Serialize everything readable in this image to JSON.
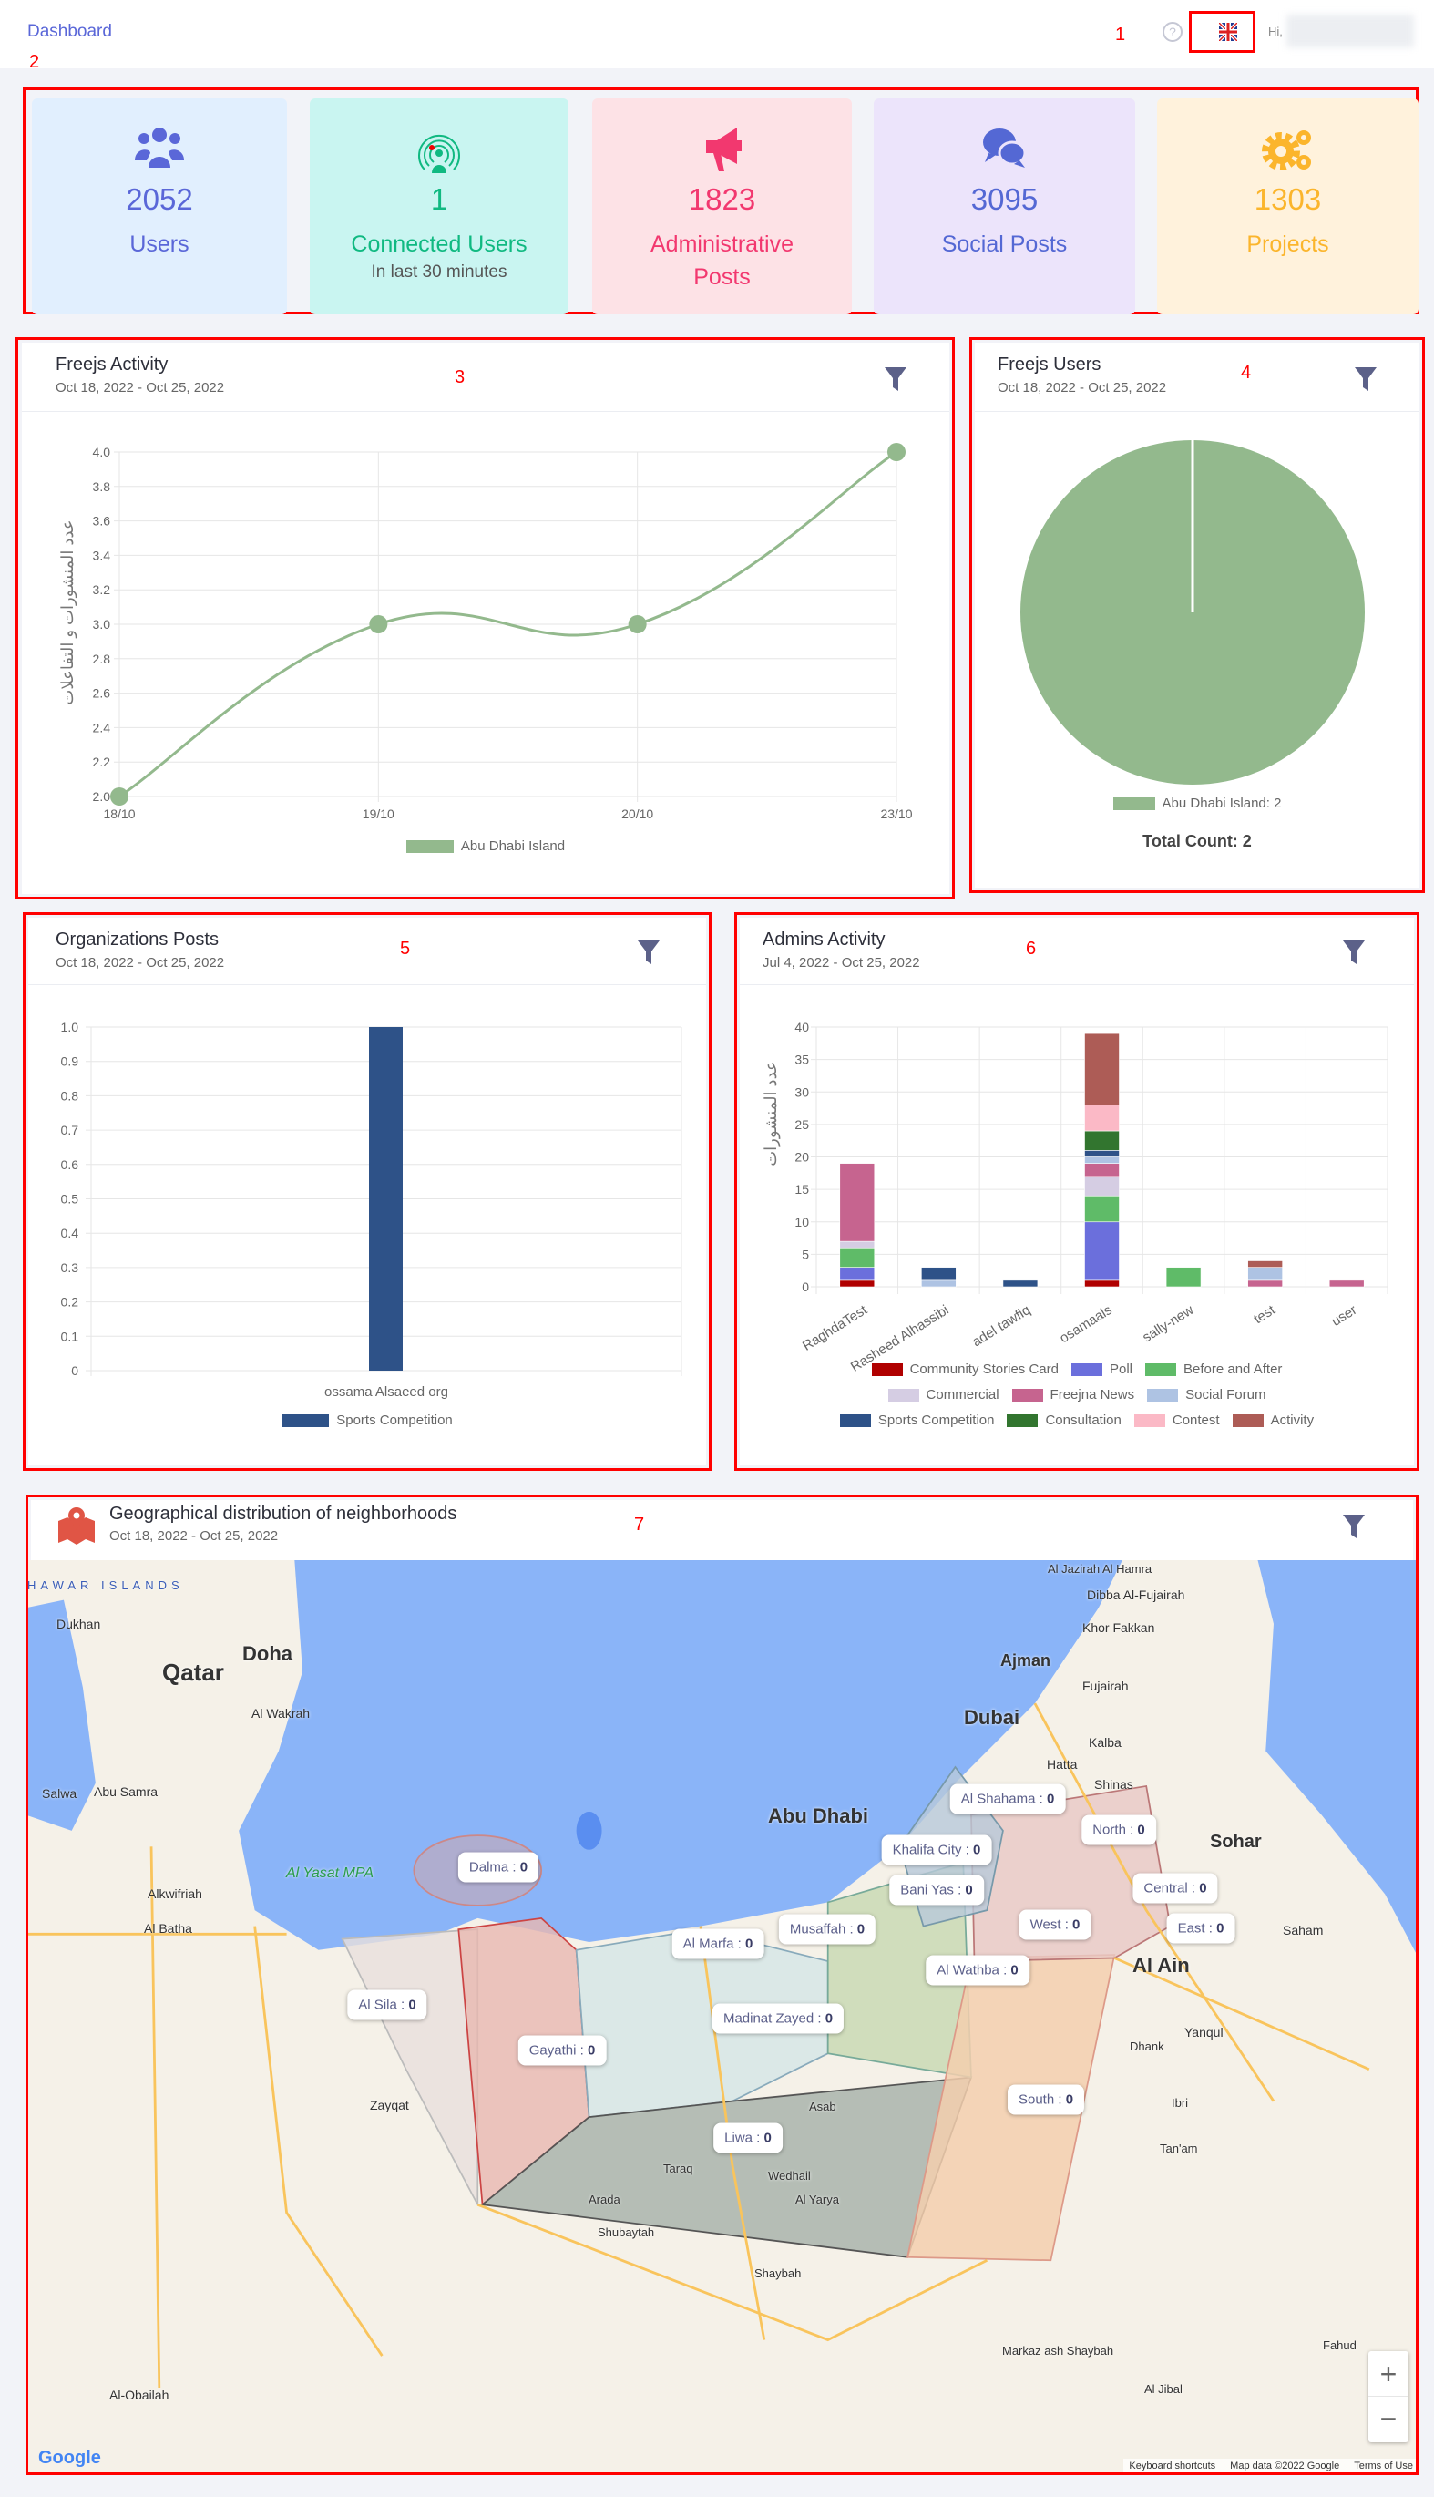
{
  "header": {
    "breadcrumb": "Dashboard",
    "greeting": "Hi,",
    "help_icon": "question-circle-icon",
    "language_icon": "uk-flag-icon"
  },
  "annotations": [
    "1",
    "2",
    "3",
    "4",
    "5",
    "6",
    "7"
  ],
  "stats": [
    {
      "value": "2052",
      "label": "Users",
      "icon": "users-icon",
      "color": "#5a67d8",
      "bg": "#e1effe"
    },
    {
      "value": "1",
      "label": "Connected Users",
      "sub": "In last 30 minutes",
      "icon": "broadcast-user-icon",
      "color": "#10b981",
      "bg": "#c9f5f1"
    },
    {
      "value": "1823",
      "label": "Administrative Posts",
      "icon": "megaphone-icon",
      "color": "#f2386f",
      "bg": "#fde2e6"
    },
    {
      "value": "3095",
      "label": "Social Posts",
      "icon": "chat-bubbles-icon",
      "color": "#5468d4",
      "bg": "#ece4fb"
    },
    {
      "value": "1303",
      "label": "Projects",
      "icon": "gears-icon",
      "color": "#fbb52c",
      "bg": "#fff2dc"
    }
  ],
  "panels": {
    "freejs_activity": {
      "title": "Freejs Activity",
      "date": "Oct 18, 2022 - Oct 25, 2022"
    },
    "freejs_users": {
      "title": "Freejs Users",
      "date": "Oct 18, 2022 - Oct 25, 2022",
      "total": "Total Count: 2"
    },
    "org_posts": {
      "title": "Organizations Posts",
      "date": "Oct 18, 2022 - Oct 25, 2022"
    },
    "admins_activity": {
      "title": "Admins Activity",
      "date": "Jul 4, 2022 - Oct 25, 2022"
    },
    "geo": {
      "title": "Geographical distribution of neighborhoods",
      "date": "Oct 18, 2022 - Oct 25, 2022"
    }
  },
  "chart_data": [
    {
      "type": "line",
      "title": "Freejs Activity",
      "ylabel": "عدد المنشورات و التفاعلات",
      "categories": [
        "18/10",
        "19/10",
        "20/10",
        "23/10"
      ],
      "series": [
        {
          "name": "Abu Dhabi Island",
          "values": [
            2,
            3,
            3,
            4
          ],
          "color": "#93b98d"
        }
      ],
      "ylim": [
        2.0,
        4.0
      ],
      "yticks": [
        "2.0",
        "2.2",
        "2.4",
        "2.6",
        "2.8",
        "3.0",
        "3.2",
        "3.4",
        "3.6",
        "3.8",
        "4.0"
      ],
      "legend": "bottom"
    },
    {
      "type": "pie",
      "title": "Freejs Users",
      "slices": [
        {
          "name": "Abu Dhabi Island",
          "value": 2,
          "label": "Abu Dhabi Island: 2",
          "color": "#93b98d"
        }
      ],
      "legend": "bottom"
    },
    {
      "type": "bar",
      "title": "Organizations Posts",
      "categories": [
        "ossama Alsaeed org"
      ],
      "series": [
        {
          "name": "Sports Competition",
          "values": [
            1
          ],
          "color": "#2e5288"
        }
      ],
      "ylim": [
        0,
        1
      ],
      "yticks": [
        "0",
        "0.1",
        "0.2",
        "0.3",
        "0.4",
        "0.5",
        "0.6",
        "0.7",
        "0.8",
        "0.9",
        "1.0"
      ],
      "legend": "bottom"
    },
    {
      "type": "bar",
      "stacked": true,
      "title": "Admins Activity",
      "ylabel": "عدد المنشورات",
      "categories": [
        "RaghdaTest",
        "Rasheed Alhassibi",
        "adel tawfiq",
        "osamaals",
        "sally-new",
        "test",
        "user"
      ],
      "ylim": [
        0,
        40
      ],
      "yticks": [
        "0",
        "5",
        "10",
        "15",
        "20",
        "25",
        "30",
        "35",
        "40"
      ],
      "legend": "bottom",
      "series": [
        {
          "name": "Community Stories Card",
          "color": "#b00000",
          "values": [
            1,
            0,
            0,
            1,
            0,
            0,
            0
          ]
        },
        {
          "name": "Poll",
          "color": "#6b6fdc",
          "values": [
            2,
            0,
            0,
            9,
            0,
            0,
            0
          ]
        },
        {
          "name": "Before and After",
          "color": "#5fbb68",
          "values": [
            3,
            0,
            0,
            4,
            3,
            0,
            0
          ]
        },
        {
          "name": "Commercial",
          "color": "#d5cde3",
          "values": [
            1,
            0,
            0,
            3,
            0,
            0,
            0
          ]
        },
        {
          "name": "Freejna News",
          "color": "#c6648f",
          "values": [
            12,
            0,
            0,
            2,
            0,
            1,
            1
          ]
        },
        {
          "name": "Social Forum",
          "color": "#aec3e3",
          "values": [
            0,
            1,
            0,
            1,
            0,
            2,
            0
          ]
        },
        {
          "name": "Sports Competition",
          "color": "#2e5288",
          "values": [
            0,
            2,
            1,
            1,
            0,
            0,
            0
          ]
        },
        {
          "name": "Consultation",
          "color": "#32752f",
          "values": [
            0,
            0,
            0,
            3,
            0,
            0,
            0
          ]
        },
        {
          "name": "Contest",
          "color": "#fbb9c6",
          "values": [
            0,
            0,
            0,
            4,
            0,
            0,
            0
          ]
        },
        {
          "name": "Activity",
          "color": "#ad5c56",
          "values": [
            0,
            0,
            0,
            11,
            0,
            1,
            0
          ]
        }
      ]
    }
  ],
  "map": {
    "regions": [
      {
        "name": "Dalma",
        "count": "0"
      },
      {
        "name": "Al Sila",
        "count": "0"
      },
      {
        "name": "Al Marfa",
        "count": "0"
      },
      {
        "name": "Musaffah",
        "count": "0"
      },
      {
        "name": "Madinat Zayed",
        "count": "0"
      },
      {
        "name": "Gayathi",
        "count": "0"
      },
      {
        "name": "Liwa",
        "count": "0"
      },
      {
        "name": "Al Wathba",
        "count": "0"
      },
      {
        "name": "Al Shahama",
        "count": "0"
      },
      {
        "name": "North",
        "count": "0"
      },
      {
        "name": "Khalifa City",
        "count": "0"
      },
      {
        "name": "Bani Yas",
        "count": "0"
      },
      {
        "name": "West",
        "count": "0"
      },
      {
        "name": "Central",
        "count": "0"
      },
      {
        "name": "East",
        "count": "0"
      },
      {
        "name": "South",
        "count": "0"
      }
    ],
    "places": [
      "HAWAR ISLANDS",
      "Dukhan",
      "Qatar",
      "Doha",
      "Al Wakrah",
      "Salwa",
      "Abu Samra",
      "Al Yasat MPA",
      "Alkwifriah",
      "Al Batha",
      "Zayqat",
      "Al-Obailah",
      "Al Jazirah Al Hamra",
      "Ajman",
      "Dubai",
      "Dibba Al-Fujairah",
      "Khor Fakkan",
      "Fujairah",
      "Kalba",
      "Hatta",
      "Shinas",
      "Abu Dhabi",
      "Sohar",
      "Saham",
      "Al Ain",
      "Yanqul",
      "Dhank",
      "Ibri",
      "Tan'am",
      "Asab",
      "Taraq",
      "Arada",
      "Wedhail",
      "Al Yarya",
      "Shubaytah",
      "Shaybah",
      "Markaz ash Shaybah",
      "Al Jibal",
      "Fahud"
    ],
    "zoom_in": "+",
    "zoom_out": "−",
    "google": "Google",
    "footer": [
      "Keyboard shortcuts",
      "Map data ©2022 Google",
      "Terms of Use"
    ]
  }
}
